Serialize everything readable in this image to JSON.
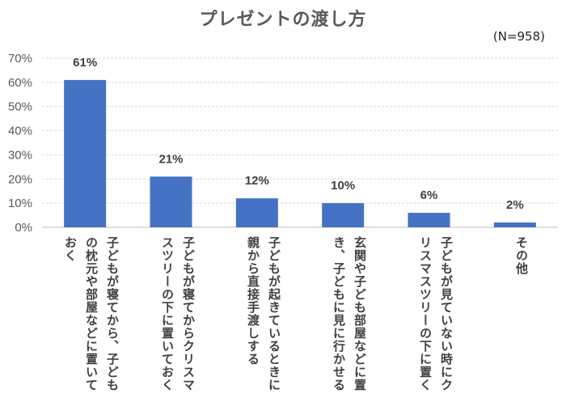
{
  "title": "プレゼントの渡し方",
  "sample_note": "(N=958)",
  "chart_data": {
    "type": "bar",
    "title": "プレゼントの渡し方",
    "categories": [
      "子どもが寝てから、子どもの枕元や部屋などに置いておく",
      "子どもが寝てからクリスマスツリーの下に置いておく",
      "子どもが起きているときに親から直接手渡しする",
      "玄関や子ども部屋などに置き、子どもに見に行かせる",
      "子どもが見ていない時にクリスマスツリーの下に置く",
      "その他"
    ],
    "values": [
      61,
      21,
      12,
      10,
      6,
      2
    ],
    "data_labels": [
      "61%",
      "21%",
      "12%",
      "10%",
      "6%",
      "2%"
    ],
    "ylim": [
      0,
      70
    ],
    "yticks": [
      "0%",
      "10%",
      "20%",
      "30%",
      "40%",
      "50%",
      "60%",
      "70%"
    ],
    "bar_color": "#4472C4",
    "grid": true,
    "legend": "none"
  }
}
